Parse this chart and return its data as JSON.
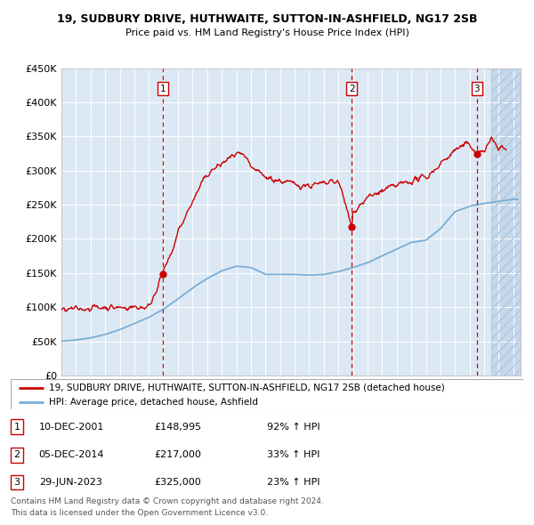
{
  "title1": "19, SUDBURY DRIVE, HUTHWAITE, SUTTON-IN-ASHFIELD, NG17 2SB",
  "title2": "Price paid vs. HM Land Registry's House Price Index (HPI)",
  "legend_line1": "19, SUDBURY DRIVE, HUTHWAITE, SUTTON-IN-ASHFIELD, NG17 2SB (detached house)",
  "legend_line2": "HPI: Average price, detached house, Ashfield",
  "footer1": "Contains HM Land Registry data © Crown copyright and database right 2024.",
  "footer2": "This data is licensed under the Open Government Licence v3.0.",
  "transactions": [
    {
      "num": 1,
      "date": "10-DEC-2001",
      "price": 148995,
      "pct": "92%",
      "dir": "↑"
    },
    {
      "num": 2,
      "date": "05-DEC-2014",
      "price": 217000,
      "pct": "33%",
      "dir": "↑"
    },
    {
      "num": 3,
      "date": "29-JUN-2023",
      "price": 325000,
      "pct": "23%",
      "dir": "↑"
    }
  ],
  "transaction_dates": [
    2001.94,
    2014.92,
    2023.49
  ],
  "transaction_prices": [
    148995,
    217000,
    325000
  ],
  "hpi_color": "#7aaed4",
  "price_color": "#cc0000",
  "dashed_line_color": "#cc0000",
  "background_plot": "#dce9f5",
  "background_hatch": "#c5d8ec",
  "ylim": [
    0,
    450000
  ],
  "xlim_start": 1995.0,
  "xlim_end": 2026.5,
  "hatch_start": 2024.5
}
